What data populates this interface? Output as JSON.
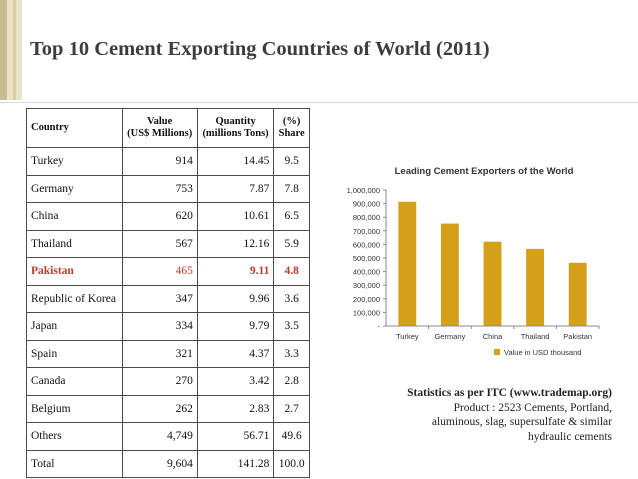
{
  "slide": {
    "title": "Top 10 Cement Exporting Countries of World (2011)"
  },
  "table": {
    "headers": [
      "Country",
      "Value\n(US$ Millions)",
      "Quantity\n(millions Tons)",
      "(%)\nShare"
    ],
    "rows": [
      {
        "country": "Turkey",
        "value": "914",
        "quantity": "14.45",
        "share": "9.5"
      },
      {
        "country": "Germany",
        "value": "753",
        "quantity": "7.87",
        "share": "7.8"
      },
      {
        "country": "China",
        "value": "620",
        "quantity": "10.61",
        "share": "6.5"
      },
      {
        "country": "Thailand",
        "value": "567",
        "quantity": "12.16",
        "share": "5.9"
      },
      {
        "country": "Pakistan",
        "value": "465",
        "quantity": "9.11",
        "share": "4.8",
        "highlight": true
      },
      {
        "country": "Republic of Korea",
        "value": "347",
        "quantity": "9.96",
        "share": "3.6"
      },
      {
        "country": "Japan",
        "value": "334",
        "quantity": "9.79",
        "share": "3.5"
      },
      {
        "country": "Spain",
        "value": "321",
        "quantity": "4.37",
        "share": "3.3"
      },
      {
        "country": "Canada",
        "value": "270",
        "quantity": "3.42",
        "share": "2.8"
      },
      {
        "country": "Belgium",
        "value": "262",
        "quantity": "2.83",
        "share": "2.7"
      },
      {
        "country": "Others",
        "value": "4,749",
        "quantity": "56.71",
        "share": "49.6"
      },
      {
        "country": "Total",
        "value": "9,604",
        "quantity": "141.28",
        "share": "100.0"
      }
    ],
    "highlight_color": "#c0392b"
  },
  "chart_data": {
    "type": "bar",
    "title": "Leading Cement Exporters of the World",
    "categories": [
      "Turkey",
      "Germany",
      "China",
      "Thailand",
      "Pakistan"
    ],
    "series": [
      {
        "name": "Value in USD thousand",
        "values": [
          914000,
          753000,
          620000,
          567000,
          465000
        ],
        "color": "#d4a017"
      }
    ],
    "ylim": [
      0,
      1000000
    ],
    "yticks": [
      "-",
      "100,000",
      "200,000",
      "300,000",
      "400,000",
      "500,000",
      "600,000",
      "700,000",
      "800,000",
      "900,000",
      "1,000,000"
    ],
    "legend_position": "bottom-right",
    "grid": false
  },
  "note": {
    "title": "Statistics as per ITC (www.trademap.org)",
    "lines": [
      "Product : 2523 Cements, Portland,",
      "aluminous, slag, supersulfate & similar",
      "hydraulic cements"
    ]
  }
}
